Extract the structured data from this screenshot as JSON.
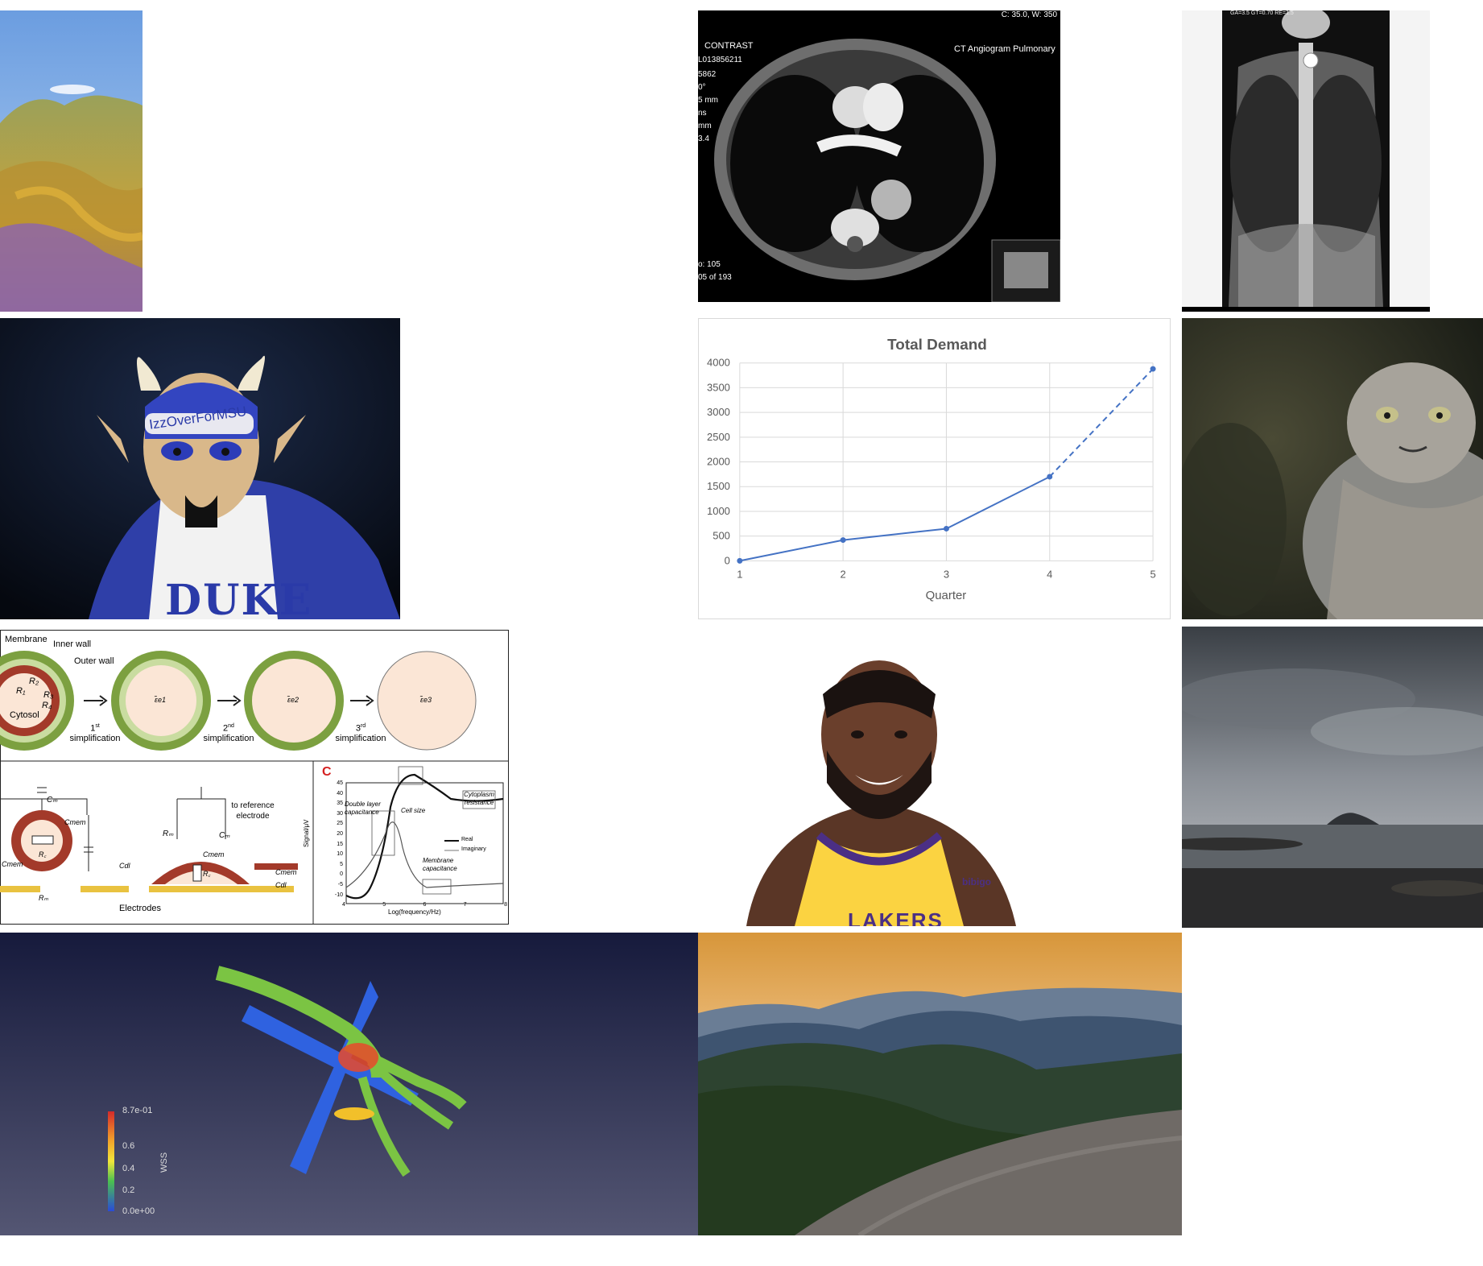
{
  "gallery": {
    "ct_scan": {
      "window_readout": "C: 35.0, W: 350",
      "series_label": "CONTRAST",
      "study_title": "CT Angiogram Pulmonary",
      "accession": "L013856211",
      "left_labels": [
        "5862",
        "0°",
        "5 mm",
        "ns",
        "mm",
        "3.4"
      ],
      "image_number": "o: 105",
      "image_count": "05 of 193"
    },
    "xray": {
      "header_text": "GA=3.5 GT=0.70 RE=1.5"
    },
    "mascot": {
      "headband_text": "IzzOverForMSU",
      "jersey_text": "DUKE"
    },
    "cell_diagram": {
      "panel_a_labels": {
        "membrane": "Membrane",
        "inner_wall": "Inner wall",
        "outer_wall": "Outer wall",
        "cytosol": "Cytosol",
        "r1": "R₁",
        "r2": "R₂",
        "r3": "R₃",
        "r4": "R₄"
      },
      "steps": [
        {
          "num": "1",
          "sup": "st",
          "text": "simplification"
        },
        {
          "num": "2",
          "sup": "nd",
          "text": "simplification"
        },
        {
          "num": "3",
          "sup": "rd",
          "text": "simplification"
        }
      ],
      "eps_labels": [
        "ε̃e1",
        "ε̃e2",
        "ε̃e3"
      ],
      "panel_b_labels": {
        "cm": "Cₘ",
        "cmem": "Cmem",
        "cmem2": "Cmem",
        "rc": "R꜀",
        "rm": "Rₘ",
        "cdl": "Cdl",
        "reference": "to reference electrode",
        "electrodes": "Electrodes",
        "rm2": "Rₘ",
        "cm2": "Cₘ",
        "cmem3": "Cmem",
        "rc2": "R꜀",
        "cmem4": "Cmem",
        "cdl2": "Cdl"
      },
      "panel_c": {
        "letter": "C",
        "ylabel": "Signal/μV",
        "xlabel": "Log(frequency/Hz)",
        "yticks": [
          "45",
          "40",
          "35",
          "30",
          "25",
          "20",
          "15",
          "10",
          "5",
          "0",
          "-5",
          "-10"
        ],
        "xticks": [
          "4",
          "5",
          "6",
          "7",
          "8"
        ],
        "annotations": [
          "Double layer capacitance",
          "Cell size",
          "Cytoplasm resistance",
          "Membrane capacitance"
        ],
        "legend": [
          "Real",
          "Imaginary"
        ]
      }
    },
    "demand_chart": {
      "chart_data": {
        "type": "line",
        "title": "Total Demand",
        "xlabel": "Quarter",
        "ylabel": "",
        "x": [
          1,
          2,
          3,
          4,
          5
        ],
        "series": [
          {
            "values": [
              0,
              420,
              650,
              1700,
              3880
            ],
            "solid_until_index": 3,
            "dashed_segment": [
              3,
              4
            ],
            "color": "#4472c4"
          }
        ],
        "xlim": [
          1,
          5
        ],
        "ylim": [
          0,
          4000
        ],
        "yticks": [
          0,
          500,
          1000,
          1500,
          2000,
          2500,
          3000,
          3500,
          4000
        ],
        "xticks": [
          1,
          2,
          3,
          4,
          5
        ],
        "grid": true
      }
    },
    "player": {
      "jersey_text": "LAKERS",
      "sponsor": "bibigo"
    },
    "wss_render": {
      "colorbar_title": "WSS",
      "colorbar_ticks": [
        "8.7e-01",
        "0.6",
        "0.4",
        "0.2",
        "0.0e+00"
      ]
    }
  }
}
